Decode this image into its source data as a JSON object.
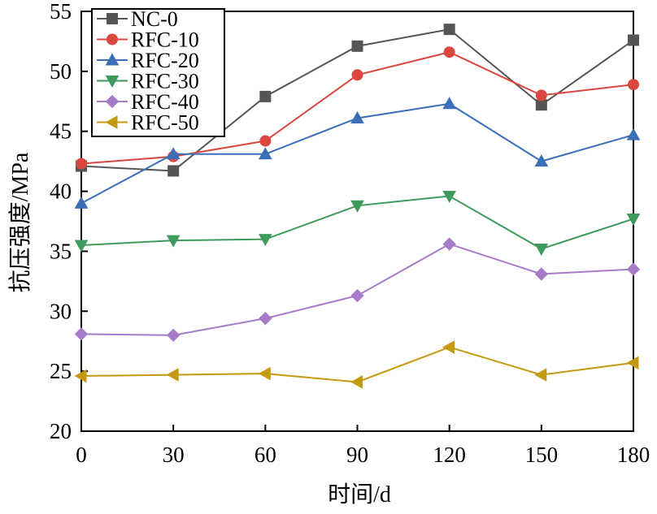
{
  "chart_data": {
    "type": "line",
    "xlabel": "时间/d",
    "ylabel": "抗压强度/MPa",
    "x": [
      0,
      30,
      60,
      90,
      120,
      150,
      180
    ],
    "xlim": [
      0,
      180
    ],
    "ylim": [
      20,
      55
    ],
    "xticks": [
      0,
      30,
      60,
      90,
      120,
      150,
      180
    ],
    "yticks": [
      20,
      25,
      30,
      35,
      40,
      45,
      50,
      55
    ],
    "grid": false,
    "legend_position": "top-left",
    "series": [
      {
        "name": "NC-0",
        "color": "#555555",
        "marker": "square",
        "values": [
          42.1,
          41.7,
          47.9,
          52.1,
          53.5,
          47.2,
          52.6
        ]
      },
      {
        "name": "RFC-10",
        "color": "#d9473f",
        "marker": "circle",
        "values": [
          42.3,
          42.9,
          44.2,
          49.7,
          51.6,
          48.0,
          48.9
        ]
      },
      {
        "name": "RFC-20",
        "color": "#3a6fb8",
        "marker": "triangle-up",
        "values": [
          39.0,
          43.1,
          43.1,
          46.1,
          47.3,
          42.5,
          44.7
        ]
      },
      {
        "name": "RFC-30",
        "color": "#3f9a5e",
        "marker": "triangle-down",
        "values": [
          35.5,
          35.9,
          36.0,
          38.8,
          39.6,
          35.2,
          37.7
        ]
      },
      {
        "name": "RFC-40",
        "color": "#a67cc8",
        "marker": "diamond",
        "values": [
          28.1,
          28.0,
          29.4,
          31.3,
          35.6,
          33.1,
          33.5
        ]
      },
      {
        "name": "RFC-50",
        "color": "#c49a12",
        "marker": "triangle-left",
        "values": [
          24.6,
          24.7,
          24.8,
          24.1,
          27.0,
          24.7,
          25.7
        ]
      }
    ]
  }
}
